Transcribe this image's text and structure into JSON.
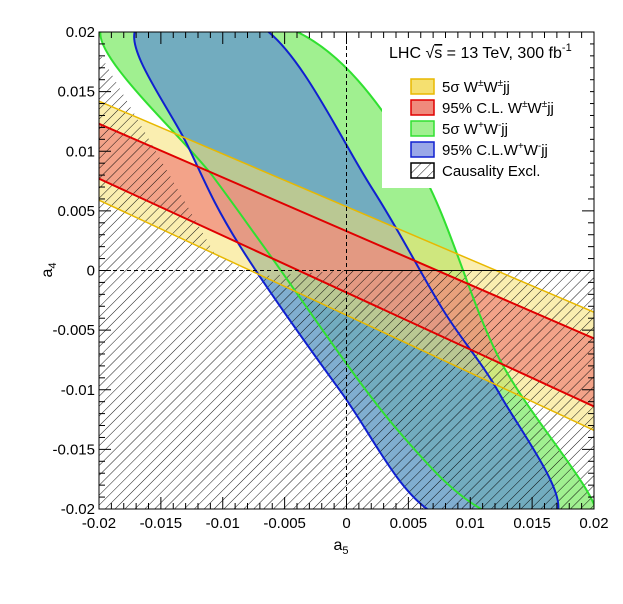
{
  "chart_data": {
    "type": "area",
    "title": "",
    "annotation": {
      "prefix": "LHC ",
      "sqrt_symbol": "√",
      "sqrt_arg": "s",
      "rest": " = 13 TeV, 300 fb",
      "superscript": "-1"
    },
    "xlabel": {
      "main": "a",
      "sub": "5"
    },
    "ylabel": {
      "main": "a",
      "sub": "4"
    },
    "xlim": [
      -0.02,
      0.02
    ],
    "ylim": [
      -0.02,
      0.02
    ],
    "xticks": [
      -0.02,
      -0.015,
      -0.01,
      -0.005,
      0,
      0.005,
      0.01,
      0.015,
      0.02
    ],
    "yticks": [
      -0.02,
      -0.015,
      -0.01,
      -0.005,
      0,
      0.005,
      0.01,
      0.015,
      0.02
    ],
    "xtick_labels": [
      "-0.02",
      "-0.015",
      "-0.01",
      "-0.005",
      "0",
      "0.005",
      "0.01",
      "0.015",
      "0.02"
    ],
    "ytick_labels": [
      "-0.02",
      "-0.015",
      "-0.01",
      "-0.005",
      "0",
      "0.005",
      "0.01",
      "0.015",
      "0.02"
    ],
    "grid": false,
    "legend_position": "top-right",
    "legend": [
      {
        "text": "5σ W",
        "sup1": "±",
        "mid": "W",
        "sup2": "±",
        "tail": "jj",
        "fill": "#f5e070",
        "stroke": "#e8b800",
        "hatched": false
      },
      {
        "text": "95% C.L. W",
        "sup1": "±",
        "mid": "W",
        "sup2": "±",
        "tail": "jj",
        "fill": "#f08a7c",
        "stroke": "#e00000",
        "hatched": false
      },
      {
        "text": "5σ W",
        "sup1": "+",
        "mid": "W",
        "sup2": "-",
        "tail": "jj",
        "fill": "#a0f090",
        "stroke": "#30e030",
        "hatched": false
      },
      {
        "text": "95% C.L.W",
        "sup1": "+",
        "mid": "W",
        "sup2": "-",
        "tail": "jj",
        "fill": "#9aa8e8",
        "stroke": "#1020d0",
        "hatched": false
      },
      {
        "text": "Causality Excl.",
        "sup1": "",
        "mid": "",
        "sup2": "",
        "tail": "",
        "fill": "none",
        "stroke": "#000000",
        "hatched": true
      }
    ],
    "series": [
      {
        "name": "5σ W+W-jj",
        "color": "#30e030",
        "fill": "#a0f090",
        "outer": [
          [
            -0.0198,
            0.0203
          ],
          [
            -0.0108,
            0.0079
          ],
          [
            -0.0064,
            0.0016
          ],
          [
            0.0039,
            -0.0131
          ],
          [
            0.0118,
            -0.0205
          ],
          [
            0.0203,
            -0.0208
          ],
          [
            0.0123,
            -0.0073
          ],
          [
            0.0054,
            0.0095
          ],
          [
            -0.0046,
            0.0203
          ]
        ]
      },
      {
        "name": "95% C.L.W+W-jj",
        "color": "#1020d0",
        "fill": "#6aa0c8",
        "outer": [
          [
            -0.017,
            0.0203
          ],
          [
            -0.0128,
            0.0104
          ],
          [
            -0.0087,
            0.0022
          ],
          [
            -0.0005,
            -0.0101
          ],
          [
            0.0071,
            -0.0204
          ],
          [
            0.017,
            -0.0204
          ],
          [
            0.0124,
            -0.0104
          ],
          [
            0.0078,
            -0.0033
          ],
          [
            0.002,
            0.007
          ],
          [
            -0.0068,
            0.0204
          ]
        ]
      },
      {
        "name": "5σ W±W±jj",
        "color": "#e8b800",
        "fill": "#f5e070",
        "lines": [
          [
            [
              -0.02,
              0.0142
            ],
            [
              0.02,
              -0.0035
            ]
          ],
          [
            [
              -0.02,
              0.0059
            ],
            [
              0.02,
              -0.0134
            ]
          ]
        ]
      },
      {
        "name": "95% C.L. W±W±jj",
        "color": "#e00000",
        "fill": "#f08a7c",
        "lines": [
          [
            [
              -0.02,
              0.0123
            ],
            [
              0.02,
              -0.0057
            ]
          ],
          [
            [
              -0.02,
              0.0077
            ],
            [
              0.02,
              -0.0114
            ]
          ]
        ]
      },
      {
        "name": "Causality Excl.",
        "color": "#000000",
        "region": [
          [
            -0.02,
            0.0183
          ],
          [
            -0.0107,
            0.0015
          ],
          [
            -0.0073,
            -0.0005
          ],
          [
            0,
            0
          ],
          [
            0.02,
            0
          ],
          [
            0.02,
            -0.02
          ],
          [
            -0.02,
            -0.02
          ]
        ]
      }
    ]
  }
}
